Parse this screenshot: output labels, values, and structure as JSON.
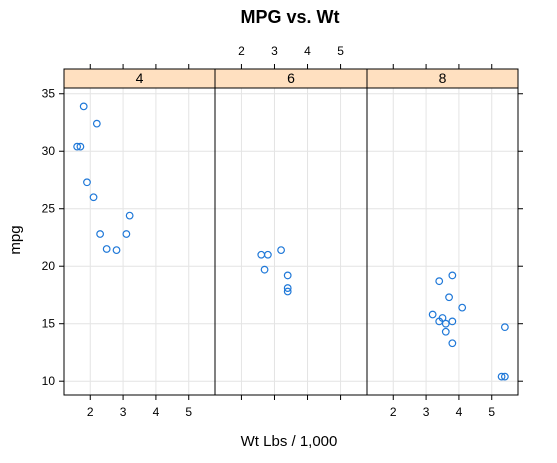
{
  "chart_data": {
    "type": "scatter",
    "title": "MPG vs. Wt",
    "xlabel": "Wt Lbs / 1,000",
    "ylabel": "mpg",
    "xlim": [
      1.2,
      5.8
    ],
    "ylim": [
      8.8,
      35.5
    ],
    "x_ticks": [
      "2",
      "3",
      "4",
      "5"
    ],
    "y_ticks": [
      "10",
      "15",
      "20",
      "25",
      "30",
      "35"
    ],
    "grid": true,
    "panel_layout": "1 row x 3 columns, shared axes",
    "colors": {
      "point": "#1f78d8",
      "strip_bg": "#ffe0c0",
      "grid": "#e4e4e4",
      "frame": "#000000"
    },
    "panels": [
      {
        "strip": "4",
        "points": [
          {
            "x": 1.6,
            "y": 30.4
          },
          {
            "x": 1.7,
            "y": 30.4
          },
          {
            "x": 1.8,
            "y": 33.9
          },
          {
            "x": 1.9,
            "y": 27.3
          },
          {
            "x": 2.1,
            "y": 26.0
          },
          {
            "x": 2.2,
            "y": 32.4
          },
          {
            "x": 2.3,
            "y": 22.8
          },
          {
            "x": 2.5,
            "y": 21.5
          },
          {
            "x": 2.8,
            "y": 21.4
          },
          {
            "x": 3.1,
            "y": 22.8
          },
          {
            "x": 3.2,
            "y": 24.4
          }
        ]
      },
      {
        "strip": "6",
        "points": [
          {
            "x": 2.6,
            "y": 21.0
          },
          {
            "x": 2.8,
            "y": 21.0
          },
          {
            "x": 2.7,
            "y": 19.7
          },
          {
            "x": 3.2,
            "y": 21.4
          },
          {
            "x": 3.4,
            "y": 18.1
          },
          {
            "x": 3.4,
            "y": 17.8
          },
          {
            "x": 3.4,
            "y": 19.2
          }
        ]
      },
      {
        "strip": "8",
        "points": [
          {
            "x": 3.2,
            "y": 15.8
          },
          {
            "x": 3.4,
            "y": 18.7
          },
          {
            "x": 3.4,
            "y": 15.2
          },
          {
            "x": 3.5,
            "y": 15.5
          },
          {
            "x": 3.6,
            "y": 14.3
          },
          {
            "x": 3.6,
            "y": 15.0
          },
          {
            "x": 3.7,
            "y": 17.3
          },
          {
            "x": 3.8,
            "y": 15.2
          },
          {
            "x": 3.8,
            "y": 13.3
          },
          {
            "x": 3.8,
            "y": 19.2
          },
          {
            "x": 4.1,
            "y": 16.4
          },
          {
            "x": 5.3,
            "y": 10.4
          },
          {
            "x": 5.4,
            "y": 14.7
          },
          {
            "x": 5.4,
            "y": 10.4
          }
        ]
      }
    ]
  }
}
